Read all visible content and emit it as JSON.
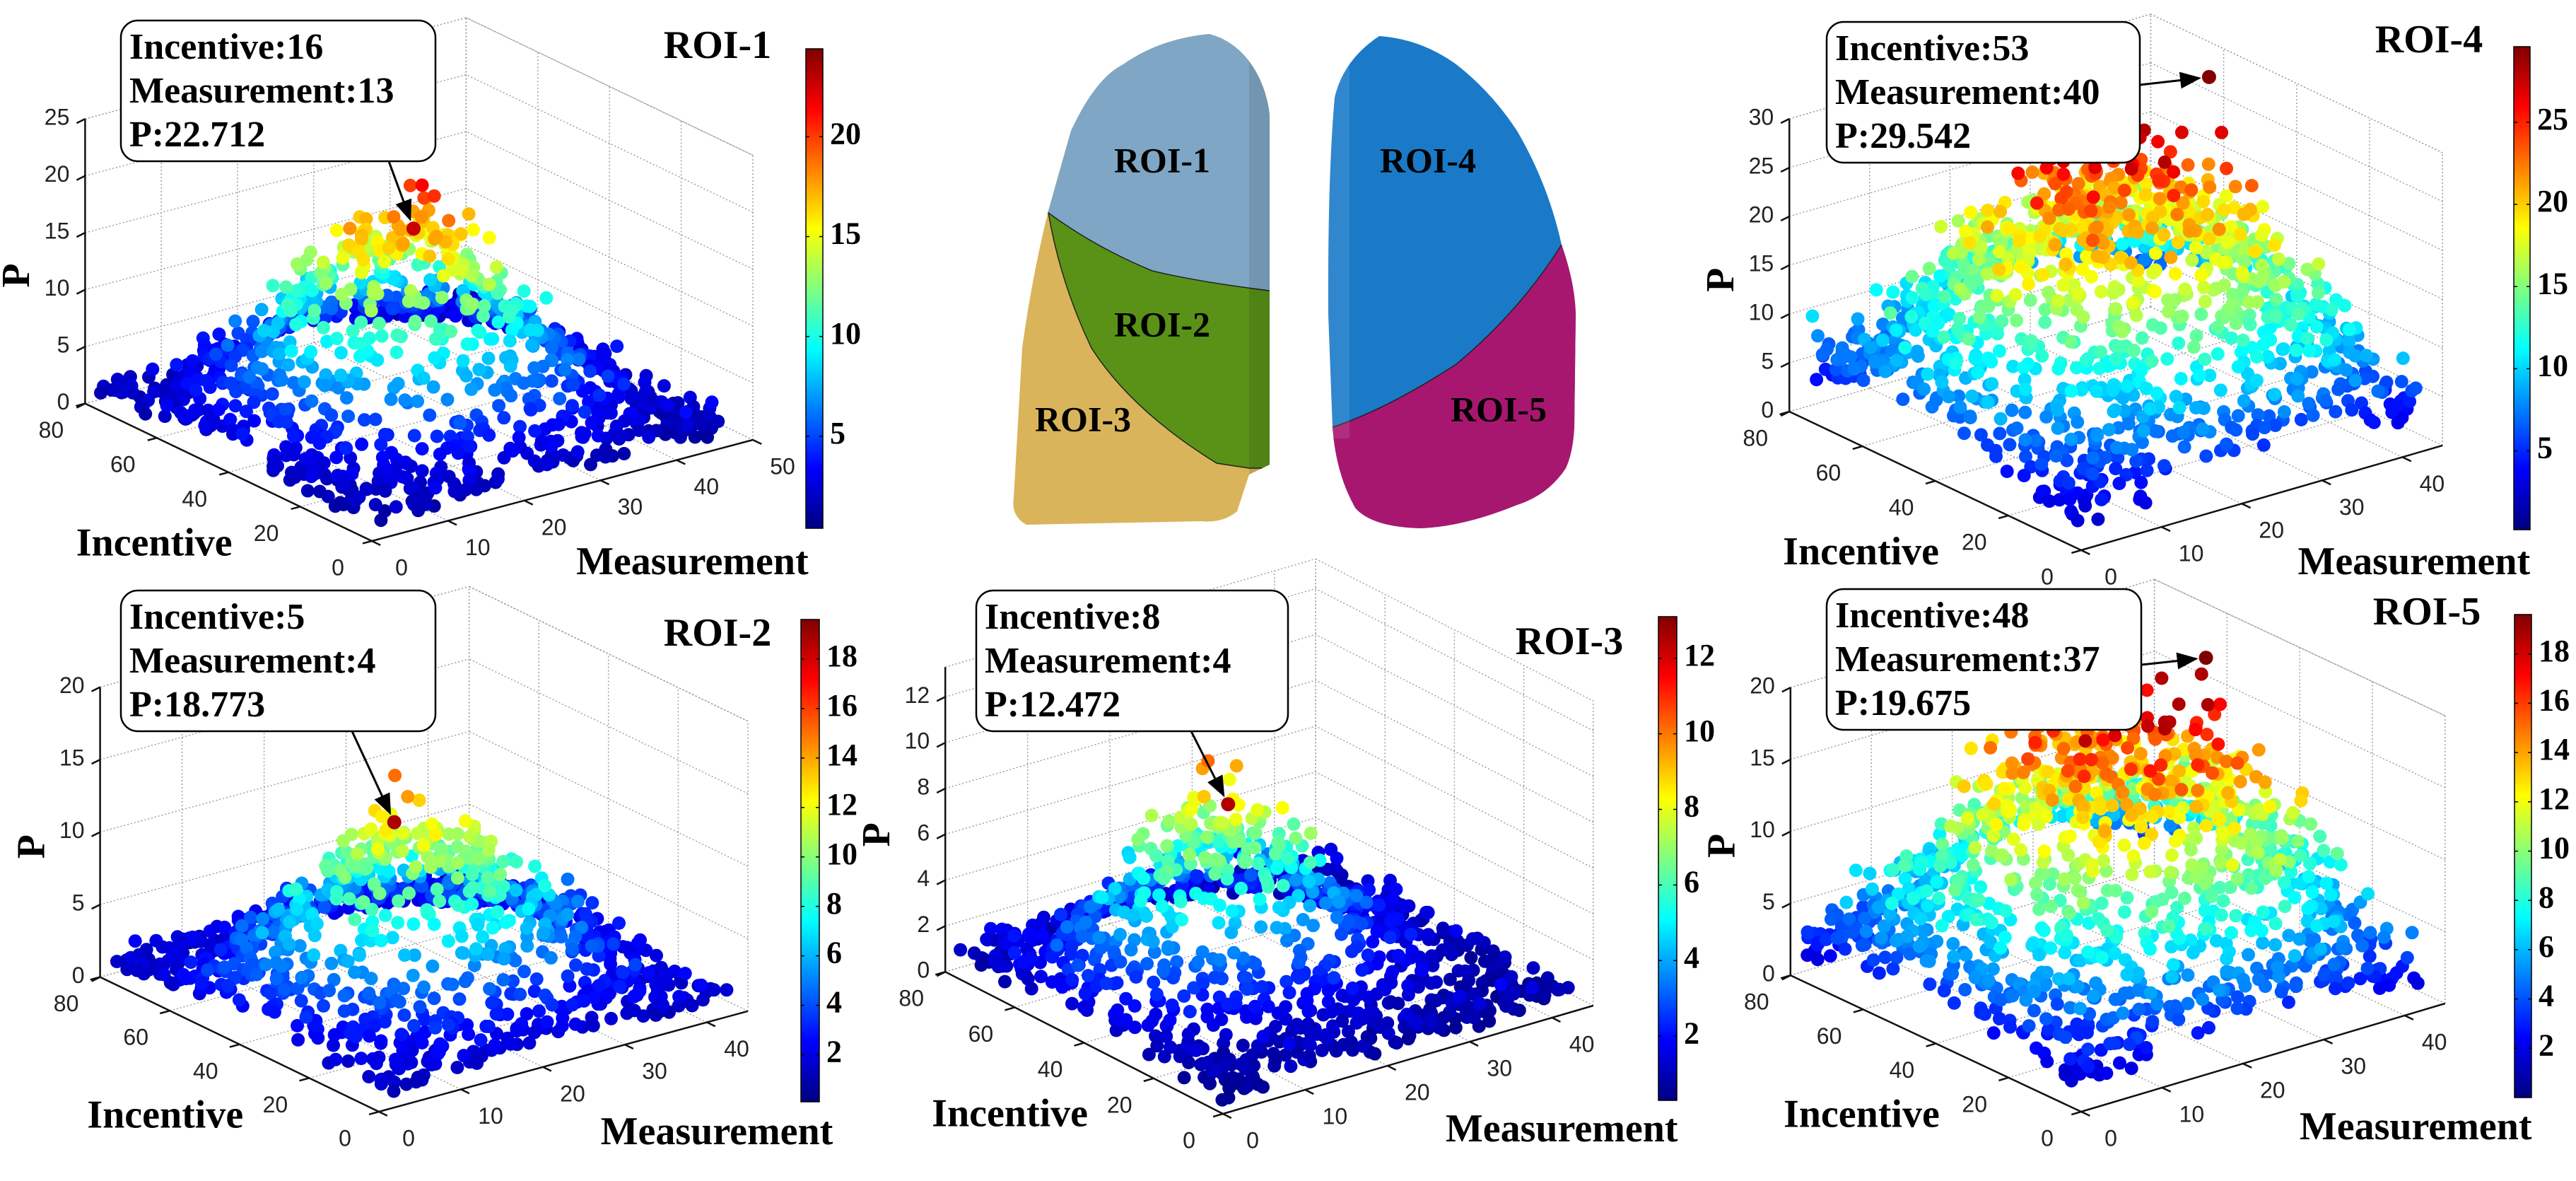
{
  "diagram": {
    "lobes": [
      {
        "label": "ROI-1",
        "color": "#7fa6c4"
      },
      {
        "label": "ROI-2",
        "color": "#5a9218"
      },
      {
        "label": "ROI-3",
        "color": "#d9b45a"
      },
      {
        "label": "ROI-4",
        "color": "#1a7ac8"
      },
      {
        "label": "ROI-5",
        "color": "#a8176f"
      }
    ]
  },
  "chart_data": [
    {
      "type": "scatter3d",
      "title": "ROI-1",
      "xlabel": "Incentive",
      "ylabel": "Measurement",
      "zlabel": "P",
      "xlim": [
        0,
        80
      ],
      "ylim": [
        0,
        50
      ],
      "zlim": [
        0,
        25
      ],
      "x_ticks": [
        0,
        20,
        40,
        60,
        80
      ],
      "y_ticks": [
        0,
        10,
        20,
        30,
        40,
        50
      ],
      "z_ticks": [
        0,
        5,
        10,
        15,
        20,
        25
      ],
      "colormap": "jet",
      "colorbar": {
        "range": [
          0.4,
          24.4
        ],
        "ticks": [
          5,
          10,
          15,
          20
        ]
      },
      "annotation": {
        "lines": [
          "Incentive:16",
          "Measurement:13",
          "P:22.712"
        ],
        "incentive": 16,
        "measurement": 13,
        "P": 22.712
      },
      "point_cloud": {
        "n": 1100,
        "seed": 11,
        "center_incentive": 42,
        "center_measurement": 24,
        "spread_incentive": 16,
        "spread_measurement": 10,
        "peak_P": 15,
        "base_P": 1,
        "noise": 2.0
      }
    },
    {
      "type": "scatter3d",
      "title": "ROI-2",
      "xlabel": "Incentive",
      "ylabel": "Measurement",
      "zlabel": "P",
      "xlim": [
        0,
        80
      ],
      "ylim": [
        0,
        45
      ],
      "zlim": [
        0,
        20
      ],
      "x_ticks": [
        0,
        20,
        40,
        60,
        80
      ],
      "y_ticks": [
        0,
        10,
        20,
        30,
        40
      ],
      "z_ticks": [
        0,
        5,
        10,
        15,
        20
      ],
      "colormap": "jet",
      "colorbar": {
        "range": [
          0.1,
          19.6
        ],
        "ticks": [
          2,
          4,
          6,
          8,
          10,
          12,
          14,
          16,
          18
        ]
      },
      "annotation": {
        "lines": [
          "Incentive:5",
          "Measurement:4",
          "P:18.773"
        ],
        "incentive": 5,
        "measurement": 4,
        "P": 18.773
      },
      "point_cloud": {
        "n": 1100,
        "seed": 22,
        "center_incentive": 38,
        "center_measurement": 20,
        "spread_incentive": 15,
        "spread_measurement": 10,
        "peak_P": 9,
        "base_P": 1,
        "noise": 1.8
      }
    },
    {
      "type": "scatter3d",
      "title": "ROI-3",
      "xlabel": "Incentive",
      "ylabel": "Measurement",
      "zlabel": "P",
      "xlim": [
        0,
        80
      ],
      "ylim": [
        0,
        45
      ],
      "zlim": [
        0,
        13.3
      ],
      "x_ticks": [
        0,
        20,
        40,
        60,
        80
      ],
      "y_ticks": [
        0,
        10,
        20,
        30,
        40
      ],
      "z_ticks": [
        0,
        2,
        4,
        6,
        8,
        10,
        12
      ],
      "colormap": "jet",
      "colorbar": {
        "range": [
          0.3,
          13.1
        ],
        "ticks": [
          2,
          4,
          6,
          8,
          10,
          12
        ]
      },
      "annotation": {
        "lines": [
          "Incentive:8",
          "Measurement:4",
          "P:12.472"
        ],
        "incentive": 8,
        "measurement": 4,
        "P": 12.472
      },
      "point_cloud": {
        "n": 1100,
        "seed": 33,
        "center_incentive": 45,
        "center_measurement": 18,
        "spread_incentive": 14,
        "spread_measurement": 9,
        "peak_P": 6,
        "base_P": 0.5,
        "noise": 1.2
      }
    },
    {
      "type": "scatter3d",
      "title": "ROI-4",
      "xlabel": "Incentive",
      "ylabel": "Measurement",
      "zlabel": "P",
      "xlim": [
        0,
        80
      ],
      "ylim": [
        0,
        45
      ],
      "zlim": [
        0,
        30
      ],
      "x_ticks": [
        0,
        20,
        40,
        60,
        80
      ],
      "y_ticks": [
        0,
        10,
        20,
        30,
        40
      ],
      "z_ticks": [
        0,
        5,
        10,
        15,
        20,
        25,
        30
      ],
      "colormap": "jet",
      "colorbar": {
        "range": [
          0.2,
          29.6
        ],
        "ticks": [
          5,
          10,
          15,
          20,
          25
        ]
      },
      "annotation": {
        "lines": [
          "Incentive:53",
          "Measurement:40",
          "P:29.542"
        ],
        "incentive": 53,
        "measurement": 40,
        "P": 29.542
      },
      "point_cloud": {
        "n": 1300,
        "seed": 44,
        "center_incentive": 45,
        "center_measurement": 25,
        "spread_incentive": 25,
        "spread_measurement": 15,
        "peak_P": 18,
        "base_P": 1,
        "noise": 4
      }
    },
    {
      "type": "scatter3d",
      "title": "ROI-5",
      "xlabel": "Incentive",
      "ylabel": "Measurement",
      "zlabel": "P",
      "xlim": [
        0,
        80
      ],
      "ylim": [
        0,
        45
      ],
      "zlim": [
        0,
        20
      ],
      "x_ticks": [
        0,
        20,
        40,
        60,
        80
      ],
      "y_ticks": [
        0,
        10,
        20,
        30,
        40
      ],
      "z_ticks": [
        0,
        5,
        10,
        15,
        20
      ],
      "colormap": "jet",
      "colorbar": {
        "range": [
          0,
          19.6
        ],
        "ticks": [
          2,
          4,
          6,
          8,
          10,
          12,
          14,
          16,
          18
        ]
      },
      "annotation": {
        "lines": [
          "Incentive:48",
          "Measurement:37",
          "P:19.675"
        ],
        "incentive": 48,
        "measurement": 37,
        "P": 19.675
      },
      "point_cloud": {
        "n": 1300,
        "seed": 55,
        "center_incentive": 45,
        "center_measurement": 25,
        "spread_incentive": 25,
        "spread_measurement": 14,
        "peak_P": 12,
        "base_P": 0.5,
        "noise": 3
      }
    }
  ]
}
